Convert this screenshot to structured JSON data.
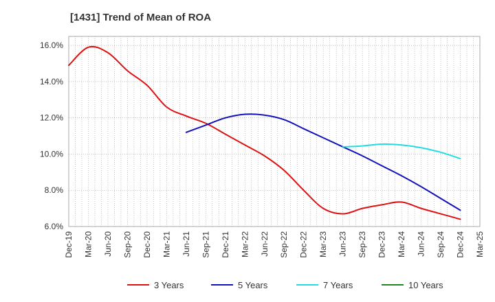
{
  "chart_data": {
    "type": "line",
    "title": "[1431]  Trend of Mean of ROA",
    "xlabel": "",
    "ylabel": "",
    "x_ticks": [
      "Dec-19",
      "Mar-20",
      "Jun-20",
      "Sep-20",
      "Dec-20",
      "Mar-21",
      "Jun-21",
      "Sep-21",
      "Dec-21",
      "Mar-22",
      "Jun-22",
      "Sep-22",
      "Dec-22",
      "Mar-23",
      "Jun-23",
      "Sep-23",
      "Dec-23",
      "Mar-24",
      "Jun-24",
      "Sep-24",
      "Dec-24",
      "Mar-25"
    ],
    "y_ticks": [
      "6.0%",
      "8.0%",
      "10.0%",
      "12.0%",
      "14.0%",
      "16.0%"
    ],
    "ylim": [
      6.0,
      16.5
    ],
    "y_unit": "%",
    "grid": true,
    "legend_position": "bottom",
    "series": [
      {
        "name": "3 Years",
        "color": "#dd1111",
        "x": [
          "Dec-19",
          "Mar-20",
          "Jun-20",
          "Sep-20",
          "Dec-20",
          "Mar-21",
          "Jun-21",
          "Sep-21",
          "Dec-21",
          "Mar-22",
          "Jun-22",
          "Sep-22",
          "Dec-22",
          "Mar-23",
          "Jun-23",
          "Sep-23",
          "Dec-23",
          "Mar-24",
          "Jun-24",
          "Sep-24",
          "Dec-24"
        ],
        "values": [
          14.9,
          15.9,
          15.6,
          14.6,
          13.8,
          12.6,
          12.1,
          11.7,
          11.1,
          10.5,
          9.9,
          9.1,
          8.0,
          7.0,
          6.7,
          7.0,
          7.2,
          7.35,
          7.0,
          6.7,
          6.4
        ]
      },
      {
        "name": "5 Years",
        "color": "#1111bb",
        "x": [
          "Jun-21",
          "Sep-21",
          "Dec-21",
          "Mar-22",
          "Jun-22",
          "Sep-22",
          "Dec-22",
          "Mar-23",
          "Jun-23",
          "Sep-23",
          "Dec-23",
          "Mar-24",
          "Jun-24",
          "Sep-24",
          "Dec-24"
        ],
        "values": [
          11.2,
          11.6,
          12.0,
          12.2,
          12.15,
          11.9,
          11.4,
          10.9,
          10.4,
          9.9,
          9.35,
          8.8,
          8.2,
          7.55,
          6.9
        ]
      },
      {
        "name": "7 Years",
        "color": "#22dddd",
        "x": [
          "Jun-23",
          "Sep-23",
          "Dec-23",
          "Mar-24",
          "Jun-24",
          "Sep-24",
          "Dec-24"
        ],
        "values": [
          10.4,
          10.45,
          10.55,
          10.5,
          10.35,
          10.1,
          9.75
        ]
      },
      {
        "name": "10 Years",
        "color": "#228822",
        "x": [],
        "values": []
      }
    ]
  }
}
